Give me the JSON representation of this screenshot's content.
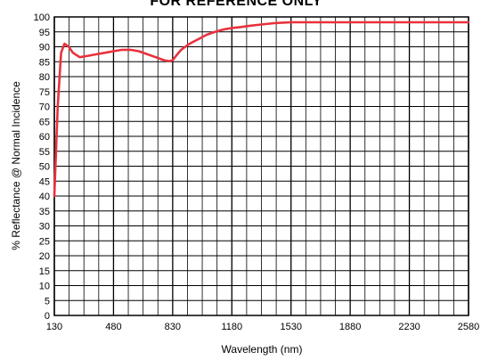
{
  "chart_data": {
    "type": "line",
    "title": "FOR REFERENCE ONLY",
    "xlabel": "Wavelength (nm)",
    "ylabel": "% Reflectance @ Normal Incidence",
    "xlim": [
      130,
      2580
    ],
    "ylim": [
      0,
      100
    ],
    "x_ticks": [
      130,
      480,
      830,
      1180,
      1530,
      1880,
      2230,
      2580
    ],
    "y_ticks": [
      0,
      5,
      10,
      15,
      20,
      25,
      30,
      35,
      40,
      45,
      50,
      55,
      60,
      65,
      70,
      75,
      80,
      85,
      90,
      95,
      100
    ],
    "grid": true,
    "series": [
      {
        "color": "#e8323c",
        "x": [
          130,
          150,
          170,
          190,
          215,
          240,
          280,
          330,
          380,
          430,
          480,
          530,
          580,
          630,
          680,
          730,
          780,
          810,
          830,
          850,
          880,
          930,
          980,
          1030,
          1080,
          1130,
          1180,
          1230,
          1280,
          1330,
          1380,
          1430,
          1480,
          1530,
          1600,
          1700,
          1800,
          1880,
          2000,
          2100,
          2230,
          2350,
          2450,
          2580
        ],
        "y": [
          40,
          70,
          88,
          91,
          90,
          88,
          86.5,
          87,
          87.5,
          88,
          88.5,
          89,
          89,
          88.5,
          87.5,
          86.5,
          85.5,
          85.2,
          85.5,
          87,
          89,
          91,
          92.5,
          94,
          95,
          95.8,
          96.3,
          96.6,
          97,
          97.3,
          97.6,
          97.9,
          98.1,
          98.2,
          98.2,
          98.2,
          98.2,
          98.2,
          98.2,
          98.2,
          98.2,
          98.2,
          98.2,
          98.2
        ]
      }
    ]
  }
}
